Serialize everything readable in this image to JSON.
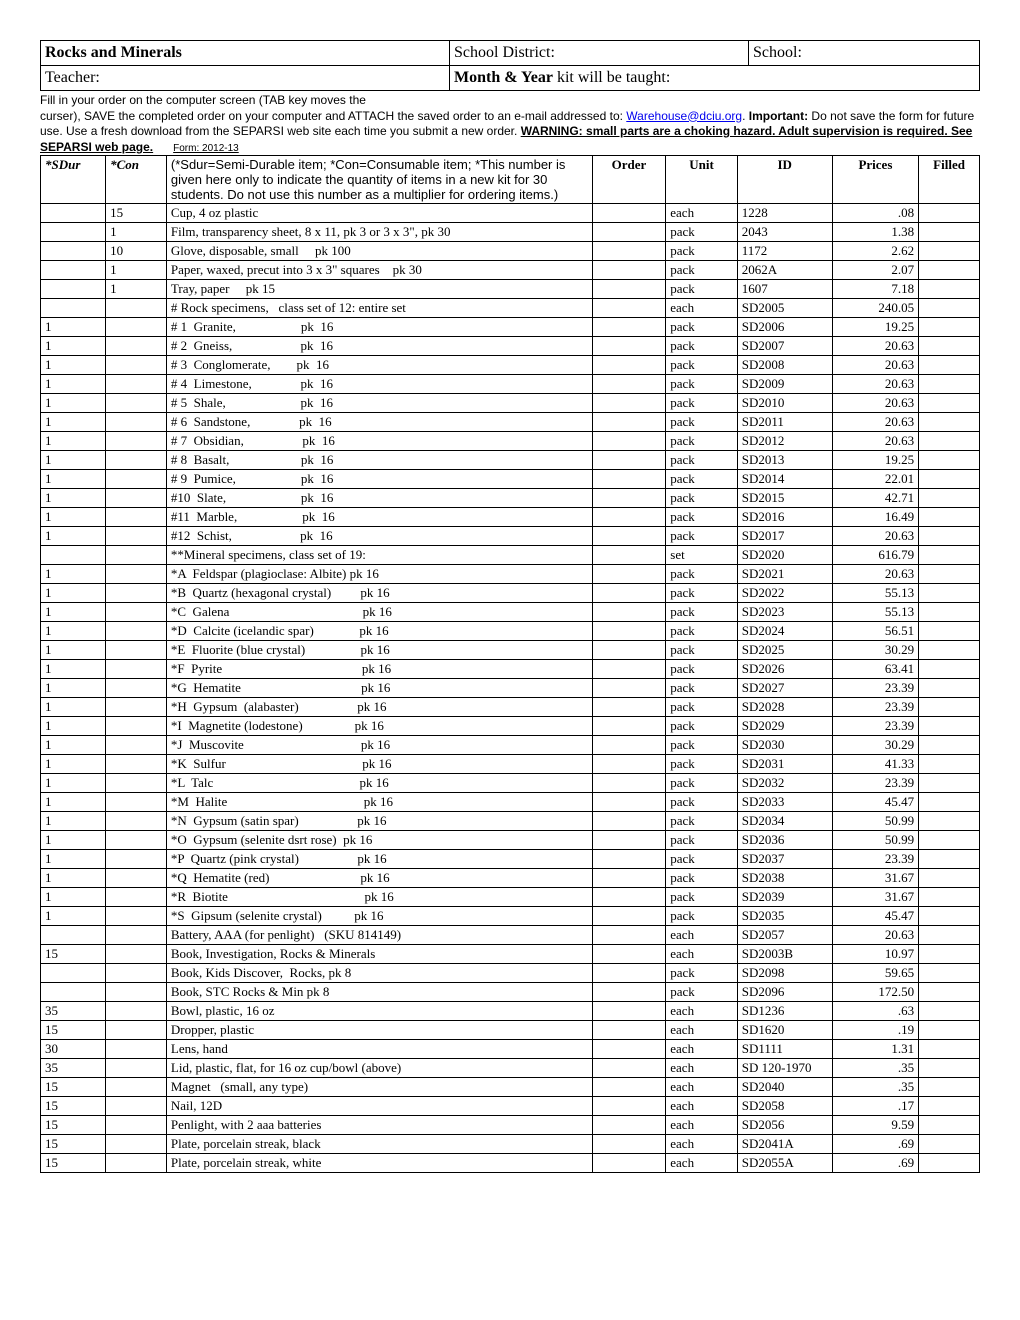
{
  "header": {
    "title": "Rocks and Minerals",
    "schoolDistrictLabel": "School District:",
    "schoolLabel": "School:",
    "teacherLabel": "Teacher:",
    "monthYearBold": "Month & Year",
    "monthYearRest": " kit will be taught:"
  },
  "instructions": {
    "line1": "Fill in your order on the computer screen (TAB key moves the",
    "line2a": "curser), SAVE the completed order on your computer and ATTACH the saved order to an e-mail addressed to: ",
    "emailText": "Warehouse@dciu.org",
    "line2b": ".  ",
    "important": "Important:",
    "line2c": " Do not save the form for future use.  Use a fresh download from the SEPARSI web site each time you submit a new order.    ",
    "warning": "WARNING: small parts are a choking hazard.  Adult supervision is required.   See SEPARSI web page.",
    "formCode": "Form: 2012-13"
  },
  "columns": {
    "sdur": "*SDur",
    "con": "*Con",
    "descNote": "(*Sdur=Semi-Durable item; *Con=Consumable item; *This number is given here only to indicate the quantity of items in a new kit for 30 students. Do not use this number as a multiplier for ordering items.)",
    "order": "Order",
    "unit": "Unit",
    "id": "ID",
    "prices": "Prices",
    "filled": "Filled"
  },
  "rows": [
    {
      "sdur": "",
      "con": "15",
      "desc": "Cup, 4 oz plastic",
      "unit": "each",
      "id": "1228",
      "price": ".08"
    },
    {
      "sdur": "",
      "con": "1",
      "desc": "Film, transparency sheet, 8 x 11, pk 3 or 3 x 3\", pk 30",
      "unit": "pack",
      "id": "2043",
      "price": "1.38"
    },
    {
      "sdur": "",
      "con": "10",
      "desc": "Glove, disposable, small     pk 100",
      "unit": "pack",
      "id": "1172",
      "price": "2.62"
    },
    {
      "sdur": "",
      "con": "1",
      "desc": "Paper, waxed, precut into 3 x 3\" squares    pk 30",
      "unit": "pack",
      "id": "2062A",
      "price": "2.07"
    },
    {
      "sdur": "",
      "con": "1",
      "desc": "Tray, paper     pk 15",
      "unit": "pack",
      "id": "1607",
      "price": "7.18"
    },
    {
      "sdur": "",
      "con": "",
      "desc": "# Rock specimens,   class set of 12: entire set",
      "unit": "each",
      "id": "SD2005",
      "price": "240.05"
    },
    {
      "sdur": "1",
      "con": "",
      "desc": "# 1  Granite,                    pk  16",
      "unit": "pack",
      "id": "SD2006",
      "price": "19.25"
    },
    {
      "sdur": "1",
      "con": "",
      "desc": "# 2  Gneiss,                     pk  16",
      "unit": "pack",
      "id": "SD2007",
      "price": "20.63"
    },
    {
      "sdur": "1",
      "con": "",
      "desc": "# 3  Conglomerate,        pk  16",
      "unit": "pack",
      "id": "SD2008",
      "price": "20.63"
    },
    {
      "sdur": "1",
      "con": "",
      "desc": "# 4  Limestone,               pk  16",
      "unit": "pack",
      "id": "SD2009",
      "price": "20.63"
    },
    {
      "sdur": "1",
      "con": "",
      "desc": "# 5  Shale,                       pk  16",
      "unit": "pack",
      "id": "SD2010",
      "price": "20.63"
    },
    {
      "sdur": "1",
      "con": "",
      "desc": "# 6  Sandstone,               pk  16",
      "unit": "pack",
      "id": "SD2011",
      "price": "20.63"
    },
    {
      "sdur": "1",
      "con": "",
      "desc": "# 7  Obsidian,                  pk  16",
      "unit": "pack",
      "id": "SD2012",
      "price": "20.63"
    },
    {
      "sdur": "1",
      "con": "",
      "desc": "# 8  Basalt,                      pk  16",
      "unit": "pack",
      "id": "SD2013",
      "price": "19.25"
    },
    {
      "sdur": "1",
      "con": "",
      "desc": "# 9  Pumice,                    pk  16",
      "unit": "pack",
      "id": "SD2014",
      "price": "22.01"
    },
    {
      "sdur": "1",
      "con": "",
      "desc": "#10  Slate,                       pk  16",
      "unit": "pack",
      "id": "SD2015",
      "price": "42.71"
    },
    {
      "sdur": "1",
      "con": "",
      "desc": "#11  Marble,                    pk  16",
      "unit": "pack",
      "id": "SD2016",
      "price": "16.49"
    },
    {
      "sdur": "1",
      "con": "",
      "desc": "#12  Schist,                     pk  16",
      "unit": "pack",
      "id": "SD2017",
      "price": "20.63"
    },
    {
      "sdur": "",
      "con": "",
      "desc": "**Mineral specimens, class set of 19:",
      "unit": "set",
      "id": "SD2020",
      "price": "616.79"
    },
    {
      "sdur": "1",
      "con": "",
      "desc": "*A  Feldspar (plagioclase: Albite) pk 16",
      "unit": "pack",
      "id": "SD2021",
      "price": "20.63"
    },
    {
      "sdur": "1",
      "con": "",
      "desc": "*B  Quartz (hexagonal crystal)         pk 16",
      "unit": "pack",
      "id": "SD2022",
      "price": "55.13"
    },
    {
      "sdur": "1",
      "con": "",
      "desc": "*C  Galena                                         pk 16",
      "unit": "pack",
      "id": "SD2023",
      "price": "55.13"
    },
    {
      "sdur": "1",
      "con": "",
      "desc": "*D  Calcite (icelandic spar)              pk 16",
      "unit": "pack",
      "id": "SD2024",
      "price": "56.51"
    },
    {
      "sdur": "1",
      "con": "",
      "desc": "*E  Fluorite (blue crystal)                 pk 16",
      "unit": "pack",
      "id": "SD2025",
      "price": "30.29"
    },
    {
      "sdur": "1",
      "con": "",
      "desc": "*F  Pyrite                                           pk 16",
      "unit": "pack",
      "id": "SD2026",
      "price": "63.41"
    },
    {
      "sdur": "1",
      "con": "",
      "desc": "*G  Hematite                                     pk 16",
      "unit": "pack",
      "id": "SD2027",
      "price": "23.39"
    },
    {
      "sdur": "1",
      "con": "",
      "desc": "*H  Gypsum  (alabaster)                  pk 16",
      "unit": "pack",
      "id": "SD2028",
      "price": "23.39"
    },
    {
      "sdur": "1",
      "con": "",
      "desc": "*I  Magnetite (lodestone)                pk 16",
      "unit": "pack",
      "id": "SD2029",
      "price": "23.39"
    },
    {
      "sdur": "1",
      "con": "",
      "desc": "*J  Muscovite                                    pk 16",
      "unit": "pack",
      "id": "SD2030",
      "price": "30.29"
    },
    {
      "sdur": "1",
      "con": "",
      "desc": "*K  Sulfur                                          pk 16",
      "unit": "pack",
      "id": "SD2031",
      "price": "41.33"
    },
    {
      "sdur": "1",
      "con": "",
      "desc": "*L  Talc                                             pk 16",
      "unit": "pack",
      "id": "SD2032",
      "price": "23.39"
    },
    {
      "sdur": "1",
      "con": "",
      "desc": "*M  Halite                                          pk 16",
      "unit": "pack",
      "id": "SD2033",
      "price": "45.47"
    },
    {
      "sdur": "1",
      "con": "",
      "desc": "*N  Gypsum (satin spar)                  pk 16",
      "unit": "pack",
      "id": "SD2034",
      "price": "50.99"
    },
    {
      "sdur": "1",
      "con": "",
      "desc": "*O  Gypsum (selenite dsrt rose)  pk 16",
      "unit": "pack",
      "id": "SD2036",
      "price": "50.99"
    },
    {
      "sdur": "1",
      "con": "",
      "desc": "*P  Quartz (pink crystal)                  pk 16",
      "unit": "pack",
      "id": "SD2037",
      "price": "23.39"
    },
    {
      "sdur": "1",
      "con": "",
      "desc": "*Q  Hematite (red)                            pk 16",
      "unit": "pack",
      "id": "SD2038",
      "price": "31.67"
    },
    {
      "sdur": "1",
      "con": "",
      "desc": "*R  Biotite                                          pk 16",
      "unit": "pack",
      "id": "SD2039",
      "price": "31.67"
    },
    {
      "sdur": "1",
      "con": "",
      "desc": "*S  Gipsum (selenite crystal)          pk 16",
      "unit": "pack",
      "id": "SD2035",
      "price": "45.47"
    },
    {
      "sdur": "",
      "con": "",
      "desc": "Battery, AAA (for penlight)   (SKU 814149)",
      "unit": "each",
      "id": "SD2057",
      "price": "20.63"
    },
    {
      "sdur": "15",
      "con": "",
      "desc": "Book, Investigation, Rocks & Minerals",
      "unit": "each",
      "id": "SD2003B",
      "price": "10.97"
    },
    {
      "sdur": "",
      "con": "",
      "desc": "Book, Kids Discover,  Rocks, pk 8",
      "unit": "pack",
      "id": "SD2098",
      "price": "59.65"
    },
    {
      "sdur": "",
      "con": "",
      "desc": "Book, STC Rocks & Min pk 8",
      "unit": "pack",
      "id": "SD2096",
      "price": "172.50"
    },
    {
      "sdur": "35",
      "con": "",
      "desc": "Bowl, plastic, 16 oz",
      "unit": "each",
      "id": "SD1236",
      "price": ".63"
    },
    {
      "sdur": "15",
      "con": "",
      "desc": "Dropper, plastic",
      "unit": "each",
      "id": "SD1620",
      "price": ".19"
    },
    {
      "sdur": "30",
      "con": "",
      "desc": "Lens, hand",
      "unit": "each",
      "id": "SD1111",
      "price": "1.31"
    },
    {
      "sdur": "35",
      "con": "",
      "desc": "Lid, plastic, flat, for 16 oz cup/bowl (above)",
      "unit": "each",
      "id": "SD 120-1970",
      "price": ".35"
    },
    {
      "sdur": "15",
      "con": "",
      "desc": "Magnet   (small, any type)",
      "unit": "each",
      "id": "SD2040",
      "price": ".35"
    },
    {
      "sdur": "15",
      "con": "",
      "desc": "Nail, 12D",
      "unit": "each",
      "id": "SD2058",
      "price": ".17"
    },
    {
      "sdur": "15",
      "con": "",
      "desc": "Penlight, with 2 aaa batteries",
      "unit": "each",
      "id": "SD2056",
      "price": "9.59"
    },
    {
      "sdur": "15",
      "con": "",
      "desc": "Plate, porcelain streak, black",
      "unit": "each",
      "id": "SD2041A",
      "price": ".69"
    },
    {
      "sdur": "15",
      "con": "",
      "desc": "Plate, porcelain streak, white",
      "unit": "each",
      "id": "SD2055A",
      "price": ".69"
    }
  ]
}
